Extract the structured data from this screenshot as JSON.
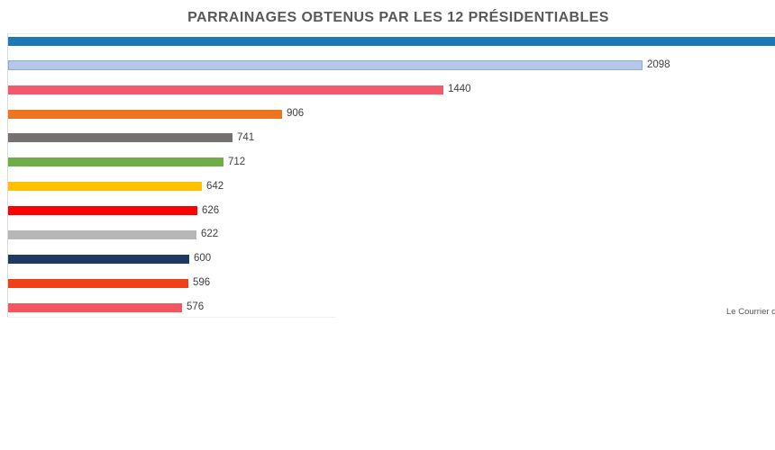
{
  "title": "PARRAINAGES OBTENUS PAR LES 12 PRÉSIDENTIABLES",
  "source_credit": "Le Courrier d",
  "colors": {
    "title_text": "#595959",
    "value_label_text": "#404040",
    "axis_line": "#d9d9d9",
    "background": "#ffffff"
  },
  "chart_data": {
    "type": "bar",
    "orientation": "horizontal",
    "title": "PARRAINAGES OBTENUS PAR LES 12 PRÉSIDENTIABLES",
    "xlabel": "",
    "ylabel": "",
    "grid": false,
    "legend": false,
    "category_labels_visible": false,
    "value_labels_visible": true,
    "bars": [
      {
        "rank": 1,
        "value": null,
        "value_label": "",
        "color": "#1e78b4",
        "clipped_at_right_edge": true
      },
      {
        "rank": 2,
        "value": 2098,
        "value_label": "2098",
        "color": "#b4c7e7",
        "border_color": "#8faadc"
      },
      {
        "rank": 3,
        "value": 1440,
        "value_label": "1440",
        "color": "#f4586b"
      },
      {
        "rank": 4,
        "value": 906,
        "value_label": "906",
        "color": "#ed7420"
      },
      {
        "rank": 5,
        "value": 741,
        "value_label": "741",
        "color": "#757171"
      },
      {
        "rank": 6,
        "value": 712,
        "value_label": "712",
        "color": "#6fad47"
      },
      {
        "rank": 7,
        "value": 642,
        "value_label": "642",
        "color": "#ffc000"
      },
      {
        "rank": 8,
        "value": 626,
        "value_label": "626",
        "color": "#fe0000"
      },
      {
        "rank": 9,
        "value": 622,
        "value_label": "622",
        "color": "#b7b7b7"
      },
      {
        "rank": 10,
        "value": 600,
        "value_label": "600",
        "color": "#1f3864"
      },
      {
        "rank": 11,
        "value": 596,
        "value_label": "596",
        "color": "#f04018"
      },
      {
        "rank": 12,
        "value": 576,
        "value_label": "576",
        "color": "#f4555f"
      }
    ]
  }
}
